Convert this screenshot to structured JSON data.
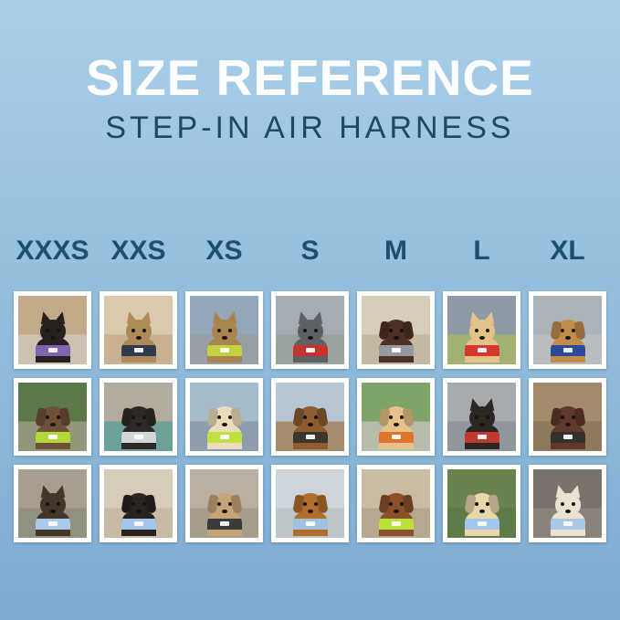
{
  "header": {
    "title": "SIZE REFERENCE",
    "subtitle": "STEP-IN AIR HARNESS"
  },
  "sizes": [
    "XXXS",
    "XXS",
    "XS",
    "S",
    "M",
    "L",
    "XL"
  ],
  "theme": {
    "background_top": "#a9cfe9",
    "background_bottom": "#7dabd0",
    "title_color": "#ffffff",
    "subtitle_color": "#1c4963",
    "size_label_color": "#1d4f6e",
    "photo_frame_color": "#ffffff"
  },
  "grid": {
    "rows": 3,
    "columns": 7,
    "photos": [
      {
        "row": 1,
        "size": "XXXS",
        "id": "black-kitten-purple-harness",
        "subject": "black kitten in purple harness indoors",
        "ears": "pointed",
        "colors": {
          "sky": "#c2a988",
          "ground": "#cdc2b2",
          "pet": "#26211e",
          "harness": "#7f63ae"
        }
      },
      {
        "row": 1,
        "size": "XXS",
        "id": "bengal-cat-navy-harness",
        "subject": "bengal cat in navy harness by window",
        "ears": "pointed",
        "colors": {
          "sky": "#dbc9ab",
          "ground": "#c8b293",
          "pet": "#ad8a58",
          "harness": "#303a4c"
        }
      },
      {
        "row": 1,
        "size": "XS",
        "id": "tabby-cat-lime-harness-car",
        "subject": "tabby cat in yellow-green harness inside car",
        "ears": "pointed",
        "colors": {
          "sky": "#93a7b8",
          "ground": "#979ea6",
          "pet": "#a8854e",
          "harness": "#c2d23f"
        }
      },
      {
        "row": 1,
        "size": "S",
        "id": "french-bulldog-red-harness",
        "subject": "grey french bulldog in red harness on path",
        "ears": "pointed",
        "colors": {
          "sky": "#a3adb3",
          "ground": "#9aa49e",
          "pet": "#5d6164",
          "harness": "#c8322e"
        }
      },
      {
        "row": 1,
        "size": "M",
        "id": "brown-spaniel-grey-harness",
        "subject": "brown spaniel in grey harness",
        "ears": "floppy",
        "colors": {
          "sky": "#d8cdbb",
          "ground": "#c3b8a2",
          "pet": "#4e3126",
          "harness": "#97999e"
        }
      },
      {
        "row": 1,
        "size": "L",
        "id": "shiba-inu-red-harness",
        "subject": "shiba inu with ball in red harness on field",
        "ears": "pointed",
        "colors": {
          "sky": "#8e9aa6",
          "ground": "#a3b173",
          "pet": "#e5c28a",
          "harness": "#d2392c"
        }
      },
      {
        "row": 1,
        "size": "XL",
        "id": "golden-retriever-navy-harness",
        "subject": "golden retriever in navy harness on sidewalk",
        "ears": "floppy",
        "colors": {
          "sky": "#a9b3b9",
          "ground": "#b9bdbf",
          "pet": "#c28c4a",
          "harness": "#2c4a9c"
        }
      },
      {
        "row": 2,
        "size": "XXXS",
        "id": "scruffy-puppy-lime-harness",
        "subject": "scruffy brown puppy in lime harness in garden",
        "ears": "floppy",
        "colors": {
          "sky": "#5c7849",
          "ground": "#90977b",
          "pet": "#6f5038",
          "harness": "#b2d839"
        }
      },
      {
        "row": 2,
        "size": "XXS",
        "id": "black-puppy-grey-harness",
        "subject": "black puppy in light grey harness on teal blanket",
        "ears": "floppy",
        "colors": {
          "sky": "#b3ac9e",
          "ground": "#6da29a",
          "pet": "#2d2926",
          "harness": "#d2d7da"
        }
      },
      {
        "row": 2,
        "size": "XS",
        "id": "cream-spaniel-lime-harness",
        "subject": "cream spaniel in lime harness on boat",
        "ears": "floppy",
        "colors": {
          "sky": "#a6bccb",
          "ground": "#8d9dab",
          "pet": "#ecdcbc",
          "harness": "#c0e03e"
        }
      },
      {
        "row": 2,
        "size": "S",
        "id": "longhair-dachshund-dock",
        "subject": "long-haired dachshund in dark harness on dock",
        "ears": "floppy",
        "colors": {
          "sky": "#b6c7d3",
          "ground": "#a68d6e",
          "pet": "#8d5c31",
          "harness": "#3c352e"
        }
      },
      {
        "row": 2,
        "size": "M",
        "id": "golden-puppy-orange-harness",
        "subject": "golden retriever puppy in orange harness at park",
        "ears": "floppy",
        "colors": {
          "sky": "#7fa468",
          "ground": "#b7bcab",
          "pet": "#e6c189",
          "harness": "#e0742c"
        }
      },
      {
        "row": 2,
        "size": "L",
        "id": "black-tan-dog-tunnel",
        "subject": "black-and-tan dog in red harness inside tunnel",
        "ears": "pointed",
        "colors": {
          "sky": "#a6abb0",
          "ground": "#90969c",
          "pet": "#2b2620",
          "harness": "#bf3a2c"
        }
      },
      {
        "row": 2,
        "size": "XL",
        "id": "brown-white-dog-deck",
        "subject": "brown-and-white dog in black harness on wooden deck",
        "ears": "floppy",
        "colors": {
          "sky": "#a18b6b",
          "ground": "#8d795c",
          "pet": "#60392a",
          "harness": "#34302d"
        }
      },
      {
        "row": 3,
        "size": "XXXS",
        "id": "yorkie-puppy-blue-harness",
        "subject": "yorkie puppy in light blue harness on pavement",
        "ears": "pointed",
        "colors": {
          "sky": "#a79e8f",
          "ground": "#90927f",
          "pet": "#44372a",
          "harness": "#a8c9e9"
        }
      },
      {
        "row": 3,
        "size": "XXS",
        "id": "dachshund-puppy-blue-harness",
        "subject": "dachshund puppy in light blue harness on sofa",
        "ears": "floppy",
        "colors": {
          "sky": "#d7ccba",
          "ground": "#c7baa6",
          "pet": "#28231f",
          "harness": "#a3c7e8"
        }
      },
      {
        "row": 3,
        "size": "XS",
        "id": "tan-doodle-black-harness",
        "subject": "tan doodle puppy in black harness on deck",
        "ears": "floppy",
        "colors": {
          "sky": "#baafa1",
          "ground": "#a79d8d",
          "pet": "#c7a478",
          "harness": "#3b3b3b"
        }
      },
      {
        "row": 3,
        "size": "S",
        "id": "red-dachshund-blue-harness",
        "subject": "red dachshund in light blue harness",
        "ears": "floppy",
        "colors": {
          "sky": "#ced5da",
          "ground": "#bec5c9",
          "pet": "#b06e2a",
          "harness": "#a0c1e0"
        }
      },
      {
        "row": 3,
        "size": "M",
        "id": "red-poodle-lime-harness",
        "subject": "red poodle in lime harness on sidewalk",
        "ears": "floppy",
        "colors": {
          "sky": "#c9bba4",
          "ground": "#b7a98f",
          "pet": "#8b4f2c",
          "harness": "#b9e03b"
        }
      },
      {
        "row": 3,
        "size": "L",
        "id": "golden-puppy-blue-harness-grass",
        "subject": "golden retriever puppy in light blue harness on grass",
        "ears": "floppy",
        "colors": {
          "sky": "#69834f",
          "ground": "#5e7a47",
          "pet": "#e9d6a9",
          "harness": "#9fc7ec"
        }
      },
      {
        "row": 3,
        "size": "XL",
        "id": "white-shepherd-blue-harness",
        "subject": "white shepherd in light blue harness at dusk",
        "ears": "pointed",
        "colors": {
          "sky": "#79736b",
          "ground": "#8b8279",
          "pet": "#eae3d1",
          "harness": "#aac7e7"
        }
      }
    ]
  }
}
